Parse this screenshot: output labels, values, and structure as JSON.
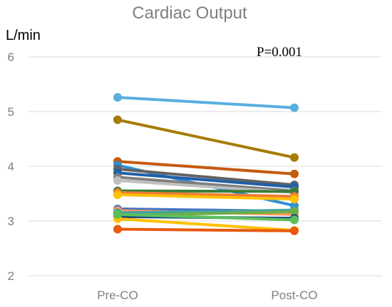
{
  "chart_data": {
    "type": "line",
    "title": "Cardiac Output",
    "ylabel": "L/min",
    "annotation": "P=0.001",
    "categories": [
      "Pre-CO",
      "Post-CO"
    ],
    "ylim": [
      2,
      6
    ],
    "yticks": [
      "2",
      "3",
      "4",
      "5",
      "6"
    ],
    "grid": true,
    "series": [
      {
        "values": [
          5.26,
          5.07
        ],
        "color": "#5aaee0"
      },
      {
        "values": [
          4.85,
          4.16
        ],
        "color": "#a67c00"
      },
      {
        "values": [
          4.09,
          3.86
        ],
        "color": "#c55a11"
      },
      {
        "values": [
          4.02,
          3.28
        ],
        "color": "#2e8fd6"
      },
      {
        "values": [
          3.95,
          3.66
        ],
        "color": "#636363"
      },
      {
        "values": [
          3.88,
          3.62
        ],
        "color": "#1f5fa8"
      },
      {
        "values": [
          3.8,
          3.55
        ],
        "color": "#7f7f7f"
      },
      {
        "values": [
          3.74,
          3.52
        ],
        "color": "#bfbfbf"
      },
      {
        "values": [
          3.55,
          3.54
        ],
        "color": "#3a7d3a"
      },
      {
        "values": [
          3.52,
          3.45
        ],
        "color": "#ed7d31"
      },
      {
        "values": [
          3.48,
          3.4
        ],
        "color": "#ffc000"
      },
      {
        "values": [
          3.22,
          3.18
        ],
        "color": "#4472c4"
      },
      {
        "values": [
          3.19,
          3.12
        ],
        "color": "#ff9a5c"
      },
      {
        "values": [
          3.15,
          3.2
        ],
        "color": "#44a3a3"
      },
      {
        "values": [
          3.1,
          3.17
        ],
        "color": "#70ad47"
      },
      {
        "values": [
          3.08,
          3.05
        ],
        "color": "#1a4f80"
      },
      {
        "values": [
          3.04,
          2.83
        ],
        "color": "#ffc000"
      },
      {
        "values": [
          2.85,
          2.82
        ],
        "color": "#e8590c"
      },
      {
        "values": [
          3.12,
          3.02
        ],
        "color": "#5cbf5c"
      }
    ]
  }
}
